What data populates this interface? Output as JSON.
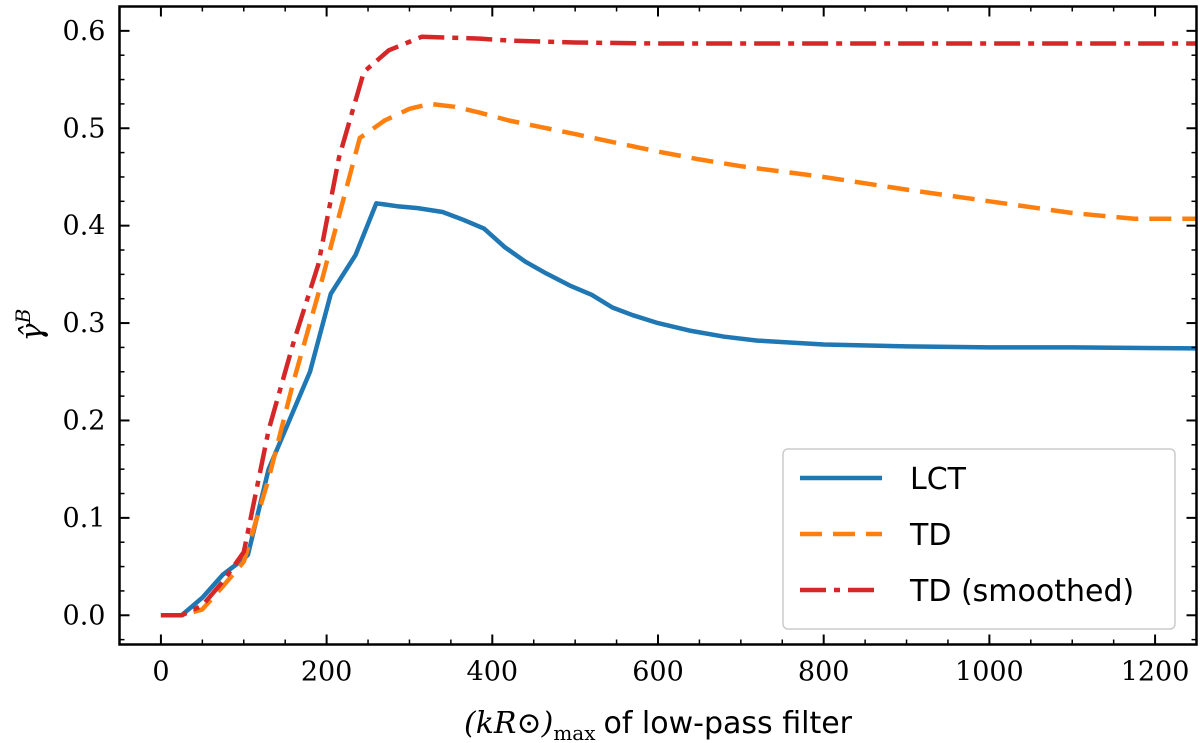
{
  "chart_data": {
    "type": "line",
    "title": "",
    "xlabel_math": "(kR⊙)",
    "xlabel_sub": "max",
    "xlabel_text": "of low-pass filter",
    "ylabel": "γ̂",
    "ylabel_sup": "B",
    "xlim": [
      -50,
      1250
    ],
    "ylim": [
      -0.03,
      0.625
    ],
    "xticks": [
      0,
      200,
      400,
      600,
      800,
      1000,
      1200
    ],
    "xtick_labels": [
      "0",
      "200",
      "400",
      "600",
      "800",
      "1000",
      "1200"
    ],
    "yticks": [
      0.0,
      0.1,
      0.2,
      0.3,
      0.4,
      0.5,
      0.6
    ],
    "ytick_labels": [
      "0.0",
      "0.1",
      "0.2",
      "0.3",
      "0.4",
      "0.5",
      "0.6"
    ],
    "grid": false,
    "legend_position": "bottom-right",
    "series": [
      {
        "name": "LCT",
        "color": "#1f77b4",
        "style": "solid",
        "x": [
          0,
          25,
          50,
          75,
          100,
          105,
          130,
          155,
          180,
          205,
          235,
          260,
          285,
          310,
          340,
          365,
          390,
          415,
          440,
          465,
          495,
          520,
          545,
          570,
          600,
          640,
          680,
          720,
          800,
          900,
          1000,
          1100,
          1250
        ],
        "y": [
          0.0,
          0.0,
          0.018,
          0.042,
          0.058,
          0.062,
          0.15,
          0.2,
          0.25,
          0.33,
          0.37,
          0.423,
          0.42,
          0.418,
          0.414,
          0.406,
          0.397,
          0.378,
          0.363,
          0.351,
          0.338,
          0.329,
          0.316,
          0.308,
          0.3,
          0.292,
          0.286,
          0.282,
          0.278,
          0.276,
          0.275,
          0.275,
          0.274
        ]
      },
      {
        "name": "TD",
        "color": "#ff7f0e",
        "style": "dashed",
        "x": [
          0,
          25,
          50,
          75,
          100,
          130,
          160,
          190,
          215,
          240,
          270,
          300,
          325,
          355,
          385,
          420,
          460,
          500,
          550,
          600,
          650,
          700,
          800,
          900,
          1000,
          1100,
          1175,
          1250
        ],
        "y": [
          0.0,
          0.0,
          0.006,
          0.03,
          0.055,
          0.14,
          0.24,
          0.33,
          0.41,
          0.49,
          0.508,
          0.52,
          0.525,
          0.522,
          0.516,
          0.508,
          0.501,
          0.494,
          0.485,
          0.476,
          0.468,
          0.461,
          0.45,
          0.437,
          0.425,
          0.413,
          0.407,
          0.407
        ]
      },
      {
        "name": "TD (smoothed)",
        "color": "#d62728",
        "style": "dashdot",
        "x": [
          0,
          25,
          50,
          75,
          100,
          130,
          160,
          190,
          215,
          245,
          275,
          315,
          350,
          385,
          420,
          500,
          600,
          800,
          1000,
          1250
        ],
        "y": [
          0.0,
          0.0,
          0.01,
          0.035,
          0.065,
          0.19,
          0.28,
          0.36,
          0.47,
          0.558,
          0.58,
          0.594,
          0.593,
          0.592,
          0.59,
          0.588,
          0.587,
          0.587,
          0.587,
          0.587
        ]
      }
    ]
  }
}
